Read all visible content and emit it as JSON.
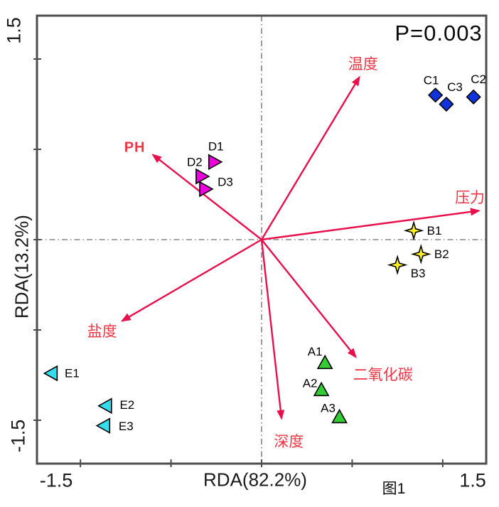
{
  "figure": {
    "p_value": "P=0.003",
    "caption": "图1"
  },
  "axes": {
    "x": {
      "title": "RDA(82.2%)",
      "min_label": "-1.5",
      "max_label": "1.5",
      "range": [
        -1.24,
        1.24
      ],
      "ticks": [
        -1,
        -0.5,
        0,
        0.5,
        1
      ]
    },
    "y": {
      "title": "RDA(13.2%)",
      "min_label": "-1.5",
      "max_label": "1.5",
      "range": [
        -1.24,
        1.24
      ],
      "ticks": [
        -1,
        -0.5,
        0,
        0.5,
        1
      ]
    }
  },
  "colors": {
    "arrow": "#e8104c",
    "arrow_label": "#ee3644",
    "frame": "#4d4d4d",
    "point_label": "#000000"
  },
  "chart_data": {
    "type": "scatter",
    "subtype": "RDA ordination biplot",
    "significance": "P=0.003",
    "xlabel": "RDA(82.2%)",
    "ylabel": "RDA(13.2%)",
    "xlim": [
      -1.5,
      1.5
    ],
    "ylim": [
      -1.5,
      1.5
    ],
    "grid": "dash-dot crosshair at origin",
    "env_arrows": [
      {
        "key": "temperature",
        "label": "温度",
        "x": 0.54,
        "y": 0.9,
        "label_x": 0.56,
        "label_y": 0.97,
        "bold": false
      },
      {
        "key": "pressure",
        "label": "压力",
        "x": 1.2,
        "y": 0.16,
        "label_x": 1.15,
        "label_y": 0.23,
        "bold": false
      },
      {
        "key": "ph",
        "label": "PH",
        "x": -0.6,
        "y": 0.47,
        "label_x": -0.7,
        "label_y": 0.51,
        "bold": true
      },
      {
        "key": "salinity",
        "label": "盐度",
        "x": -0.77,
        "y": -0.45,
        "label_x": -0.88,
        "label_y": -0.51,
        "bold": false
      },
      {
        "key": "depth",
        "label": "深度",
        "x": 0.11,
        "y": -0.99,
        "label_x": 0.15,
        "label_y": -1.12,
        "bold": false
      },
      {
        "key": "co2",
        "label": "二氧化碳",
        "x": 0.52,
        "y": -0.65,
        "label_x": 0.67,
        "label_y": -0.75,
        "bold": false
      }
    ],
    "series": [
      {
        "name": "A",
        "marker": "triangle-up",
        "color": "#33cc33",
        "points": [
          {
            "label": "A1",
            "x": 0.35,
            "y": -0.68,
            "label_dx": -14,
            "label_dy": -15
          },
          {
            "label": "A2",
            "x": 0.33,
            "y": -0.83,
            "label_dx": -16,
            "label_dy": -9
          },
          {
            "label": "A3",
            "x": 0.43,
            "y": -0.98,
            "label_dx": -16,
            "label_dy": -12
          }
        ]
      },
      {
        "name": "B",
        "marker": "star4",
        "color": "#ffee22",
        "points": [
          {
            "label": "B1",
            "x": 0.84,
            "y": 0.05,
            "label_dx": 29,
            "label_dy": 0
          },
          {
            "label": "B2",
            "x": 0.88,
            "y": -0.08,
            "label_dx": 29,
            "label_dy": 0
          },
          {
            "label": "B3",
            "x": 0.75,
            "y": -0.14,
            "label_dx": 29,
            "label_dy": 12
          }
        ]
      },
      {
        "name": "C",
        "marker": "diamond",
        "color": "#1133dd",
        "points": [
          {
            "label": "C1",
            "x": 0.96,
            "y": 0.8,
            "label_dx": -6,
            "label_dy": -21
          },
          {
            "label": "C3",
            "x": 1.02,
            "y": 0.75,
            "label_dx": 12,
            "label_dy": -24
          },
          {
            "label": "C2",
            "x": 1.17,
            "y": 0.79,
            "label_dx": 7,
            "label_dy": -25
          }
        ]
      },
      {
        "name": "D",
        "marker": "triangle-right",
        "color": "#ee00dd",
        "points": [
          {
            "label": "D1",
            "x": -0.26,
            "y": 0.43,
            "label_dx": 2,
            "label_dy": -22
          },
          {
            "label": "D2",
            "x": -0.33,
            "y": 0.35,
            "label_dx": -10,
            "label_dy": -20
          },
          {
            "label": "D3",
            "x": -0.31,
            "y": 0.28,
            "label_dx": 28,
            "label_dy": -10
          }
        ]
      },
      {
        "name": "E",
        "marker": "triangle-left",
        "color": "#33ddee",
        "points": [
          {
            "label": "E1",
            "x": -1.16,
            "y": -0.74,
            "label_dx": 29,
            "label_dy": 0
          },
          {
            "label": "E2",
            "x": -0.86,
            "y": -0.92,
            "label_dx": 30,
            "label_dy": -1
          },
          {
            "label": "E3",
            "x": -0.87,
            "y": -1.03,
            "label_dx": 31,
            "label_dy": 1
          }
        ]
      }
    ]
  }
}
